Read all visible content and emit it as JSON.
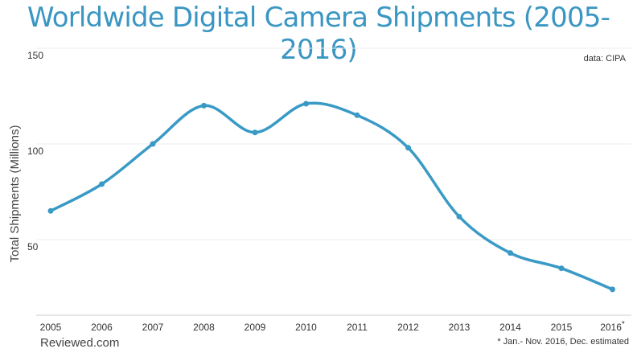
{
  "chart_data": {
    "type": "line",
    "title": "Worldwide Digital Camera Shipments (2005-2016)",
    "ylabel": "Total Shipments (Millions)",
    "xlabel": "",
    "source": "data: CIPA",
    "categories": [
      "2005",
      "2006",
      "2007",
      "2008",
      "2009",
      "2010",
      "2011",
      "2012",
      "2013",
      "2014",
      "2015",
      "2016"
    ],
    "tick_suffix": {
      "2016": "*"
    },
    "values": [
      65,
      79,
      100,
      120,
      106,
      121,
      115,
      98,
      62,
      43,
      35,
      24
    ],
    "ylim": [
      0,
      150
    ],
    "yticks": [
      50,
      100,
      150
    ],
    "grid": true,
    "line_color": "#3a9ac6"
  },
  "footer": {
    "brand": "Reviewed.com",
    "note": "* Jan.- Nov. 2016, Dec. estimated"
  }
}
